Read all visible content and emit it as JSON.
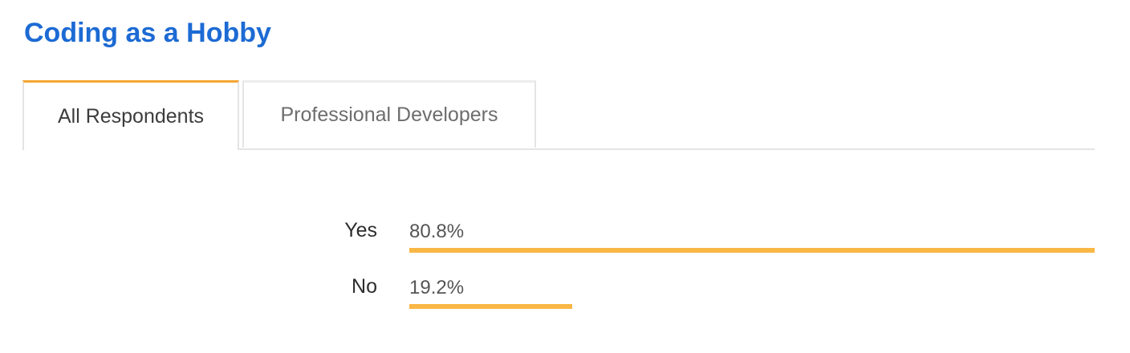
{
  "title": "Coding as a Hobby",
  "tabs": [
    {
      "label": "All Respondents",
      "active": true
    },
    {
      "label": "Professional Developers",
      "active": false
    }
  ],
  "colors": {
    "title": "#1c6ad4",
    "tab_accent": "#f5a634",
    "bar": "#f9b746"
  },
  "chart_data": {
    "type": "bar",
    "orientation": "horizontal",
    "categories": [
      "Yes",
      "No"
    ],
    "values": [
      80.8,
      19.2
    ],
    "value_labels": [
      "80.8%",
      "19.2%"
    ],
    "unit": "%",
    "xlim": [
      0,
      80.8
    ],
    "grid": false,
    "legend": "none"
  }
}
